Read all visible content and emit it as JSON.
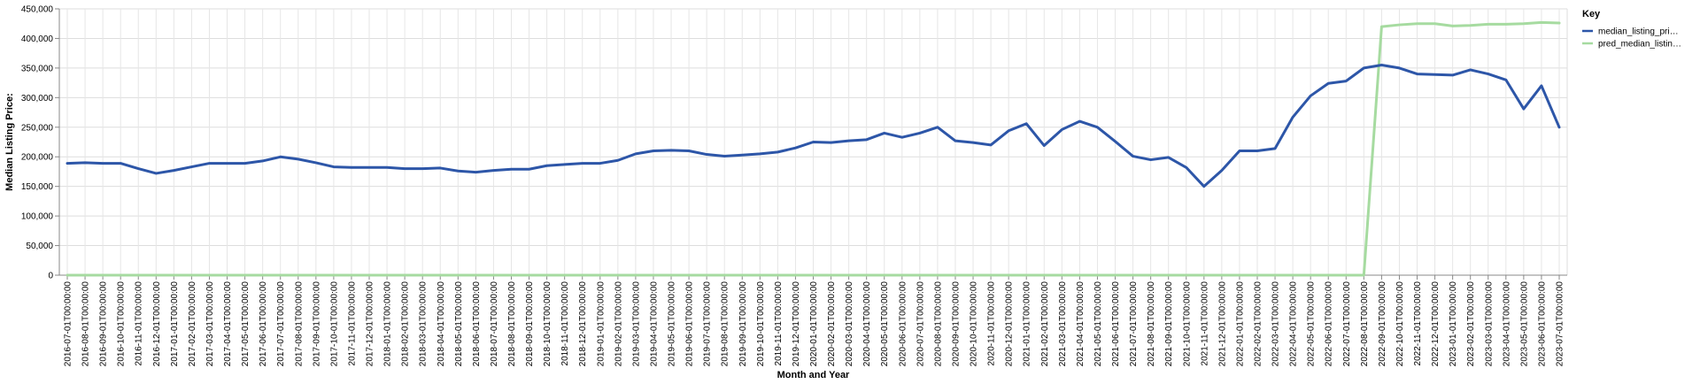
{
  "chart_data": {
    "type": "line",
    "xlabel": "Month and Year",
    "ylabel": "Median Listing Price:",
    "ylim": [
      0,
      450000
    ],
    "yticks": [
      "0",
      "50,000",
      "100,000",
      "150,000",
      "200,000",
      "250,000",
      "300,000",
      "350,000",
      "400,000",
      "450,000"
    ],
    "grid": true,
    "legend_position": "top-right",
    "legend_title": "Key",
    "x": [
      "2016-07-01T00:00:00",
      "2016-08-01T00:00:00",
      "2016-09-01T00:00:00",
      "2016-10-01T00:00:00",
      "2016-11-01T00:00:00",
      "2016-12-01T00:00:00",
      "2017-01-01T00:00:00",
      "2017-02-01T00:00:00",
      "2017-03-01T00:00:00",
      "2017-04-01T00:00:00",
      "2017-05-01T00:00:00",
      "2017-06-01T00:00:00",
      "2017-07-01T00:00:00",
      "2017-08-01T00:00:00",
      "2017-09-01T00:00:00",
      "2017-10-01T00:00:00",
      "2017-11-01T00:00:00",
      "2017-12-01T00:00:00",
      "2018-01-01T00:00:00",
      "2018-02-01T00:00:00",
      "2018-03-01T00:00:00",
      "2018-04-01T00:00:00",
      "2018-05-01T00:00:00",
      "2018-06-01T00:00:00",
      "2018-07-01T00:00:00",
      "2018-08-01T00:00:00",
      "2018-09-01T00:00:00",
      "2018-10-01T00:00:00",
      "2018-11-01T00:00:00",
      "2018-12-01T00:00:00",
      "2019-01-01T00:00:00",
      "2019-02-01T00:00:00",
      "2019-03-01T00:00:00",
      "2019-04-01T00:00:00",
      "2019-05-01T00:00:00",
      "2019-06-01T00:00:00",
      "2019-07-01T00:00:00",
      "2019-08-01T00:00:00",
      "2019-09-01T00:00:00",
      "2019-10-01T00:00:00",
      "2019-11-01T00:00:00",
      "2019-12-01T00:00:00",
      "2020-01-01T00:00:00",
      "2020-02-01T00:00:00",
      "2020-03-01T00:00:00",
      "2020-04-01T00:00:00",
      "2020-05-01T00:00:00",
      "2020-06-01T00:00:00",
      "2020-07-01T00:00:00",
      "2020-08-01T00:00:00",
      "2020-09-01T00:00:00",
      "2020-10-01T00:00:00",
      "2020-11-01T00:00:00",
      "2020-12-01T00:00:00",
      "2021-01-01T00:00:00",
      "2021-02-01T00:00:00",
      "2021-03-01T00:00:00",
      "2021-04-01T00:00:00",
      "2021-05-01T00:00:00",
      "2021-06-01T00:00:00",
      "2021-07-01T00:00:00",
      "2021-08-01T00:00:00",
      "2021-09-01T00:00:00",
      "2021-10-01T00:00:00",
      "2021-11-01T00:00:00",
      "2021-12-01T00:00:00",
      "2022-01-01T00:00:00",
      "2022-02-01T00:00:00",
      "2022-03-01T00:00:00",
      "2022-04-01T00:00:00",
      "2022-05-01T00:00:00",
      "2022-06-01T00:00:00",
      "2022-07-01T00:00:00",
      "2022-08-01T00:00:00",
      "2022-09-01T00:00:00",
      "2022-10-01T00:00:00",
      "2022-11-01T00:00:00",
      "2022-12-01T00:00:00",
      "2023-01-01T00:00:00",
      "2023-02-01T00:00:00",
      "2023-03-01T00:00:00",
      "2023-04-01T00:00:00",
      "2023-05-01T00:00:00",
      "2023-06-01T00:00:00",
      "2023-07-01T00:00:00"
    ],
    "series": [
      {
        "name": "median_listing_pri…",
        "color": "#2d56a8",
        "values": [
          189000,
          190000,
          189000,
          189000,
          180000,
          172000,
          177000,
          183000,
          189000,
          189000,
          189000,
          193000,
          199900,
          196000,
          190000,
          183000,
          182000,
          182000,
          182000,
          180000,
          180000,
          181000,
          176000,
          174000,
          177000,
          179000,
          179000,
          185000,
          187000,
          189000,
          189000,
          194000,
          205000,
          210000,
          211000,
          210000,
          204000,
          201000,
          203000,
          205000,
          208000,
          215000,
          225000,
          224000,
          227000,
          229000,
          240000,
          233000,
          240000,
          250000,
          227000,
          224000,
          220000,
          244000,
          256000,
          219000,
          246000,
          260000,
          250000,
          226000,
          201000,
          195000,
          199000,
          182000,
          150000,
          177000,
          210000,
          210000,
          214000,
          267000,
          303000,
          324000,
          328000,
          350000,
          355000,
          350000,
          340000,
          339000,
          338000,
          347000,
          340000,
          330000,
          281000,
          320000,
          250000
        ]
      },
      {
        "name": "pred_median_listin…",
        "color": "#a6dba0",
        "values": [
          0,
          0,
          0,
          0,
          0,
          0,
          0,
          0,
          0,
          0,
          0,
          0,
          0,
          0,
          0,
          0,
          0,
          0,
          0,
          0,
          0,
          0,
          0,
          0,
          0,
          0,
          0,
          0,
          0,
          0,
          0,
          0,
          0,
          0,
          0,
          0,
          0,
          0,
          0,
          0,
          0,
          0,
          0,
          0,
          0,
          0,
          0,
          0,
          0,
          0,
          0,
          0,
          0,
          0,
          0,
          0,
          0,
          0,
          0,
          0,
          0,
          0,
          0,
          0,
          0,
          0,
          0,
          0,
          0,
          0,
          0,
          0,
          0,
          0,
          420000,
          423000,
          425000,
          425000,
          421000,
          422000,
          424000,
          424000,
          425000,
          427000,
          426000
        ]
      }
    ]
  }
}
